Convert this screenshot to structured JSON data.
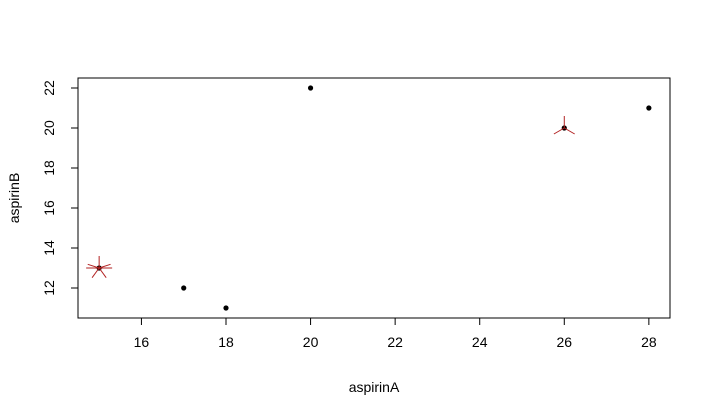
{
  "chart_data": {
    "type": "scatter",
    "title": "",
    "xlabel": "aspirinA",
    "ylabel": "aspirinB",
    "xlim": [
      14.5,
      28.5
    ],
    "ylim": [
      10.5,
      22.5
    ],
    "x_ticks": [
      16,
      18,
      20,
      22,
      24,
      26,
      28
    ],
    "y_ticks": [
      12,
      14,
      16,
      18,
      20,
      22
    ],
    "grid": false,
    "series": [
      {
        "points": [
          {
            "x": 15,
            "y": 13
          },
          {
            "x": 17,
            "y": 12
          },
          {
            "x": 18,
            "y": 11
          },
          {
            "x": 20,
            "y": 22
          },
          {
            "x": 26,
            "y": 20
          },
          {
            "x": 28,
            "y": 21
          }
        ],
        "marker": "filled-circle",
        "color": "#000000"
      }
    ],
    "highlighted_points": [
      {
        "x": 15,
        "y": 13,
        "marker": "sunflower-5-rays",
        "color": "#b22222"
      },
      {
        "x": 26,
        "y": 20,
        "marker": "sunflower-3-rays",
        "color": "#b22222"
      }
    ]
  }
}
